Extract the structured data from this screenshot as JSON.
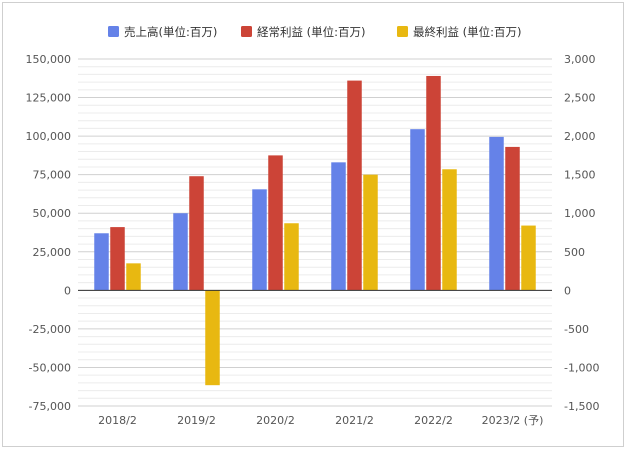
{
  "chart_data": {
    "type": "bar",
    "categories": [
      "2018/2",
      "2019/2",
      "2020/2",
      "2021/2",
      "2022/2",
      "2023/2 (予)"
    ],
    "series": [
      {
        "name": "売上高(単位:百万)",
        "axis": "left",
        "color": "#6582e8",
        "values": [
          37000,
          50000,
          65500,
          83000,
          104500,
          99500
        ]
      },
      {
        "name": "経常利益 (単位:百万)",
        "axis": "right",
        "color": "#cc4437",
        "values": [
          820,
          1480,
          1750,
          2720,
          2780,
          1860
        ]
      },
      {
        "name": "最終利益 (単位:百万)",
        "axis": "right",
        "color": "#e8b811",
        "values": [
          350,
          -1230,
          870,
          1500,
          1570,
          840
        ]
      }
    ],
    "y_left": {
      "lim": [
        -75000,
        150000
      ],
      "ticks": [
        -75000,
        -50000,
        -25000,
        0,
        25000,
        50000,
        75000,
        100000,
        125000,
        150000
      ],
      "tick_labels": [
        "-75,000",
        "-50,000",
        "-25,000",
        "0",
        "25,000",
        "50,000",
        "75,000",
        "100,000",
        "125,000",
        "150,000"
      ]
    },
    "y_right": {
      "lim": [
        -1500,
        3000
      ],
      "ticks": [
        -1500,
        -1000,
        -500,
        0,
        500,
        1000,
        1500,
        2000,
        2500,
        3000
      ],
      "tick_labels": [
        "-1,500",
        "-1,000",
        "-500",
        "0",
        "500",
        "1,000",
        "1,500",
        "2,000",
        "2,500",
        "3,000"
      ]
    },
    "legend_position": "top",
    "grid": true,
    "colors": {
      "grid_major": "#d0d0d0",
      "grid_minor": "#ececec",
      "zero_line": "#333333"
    }
  }
}
